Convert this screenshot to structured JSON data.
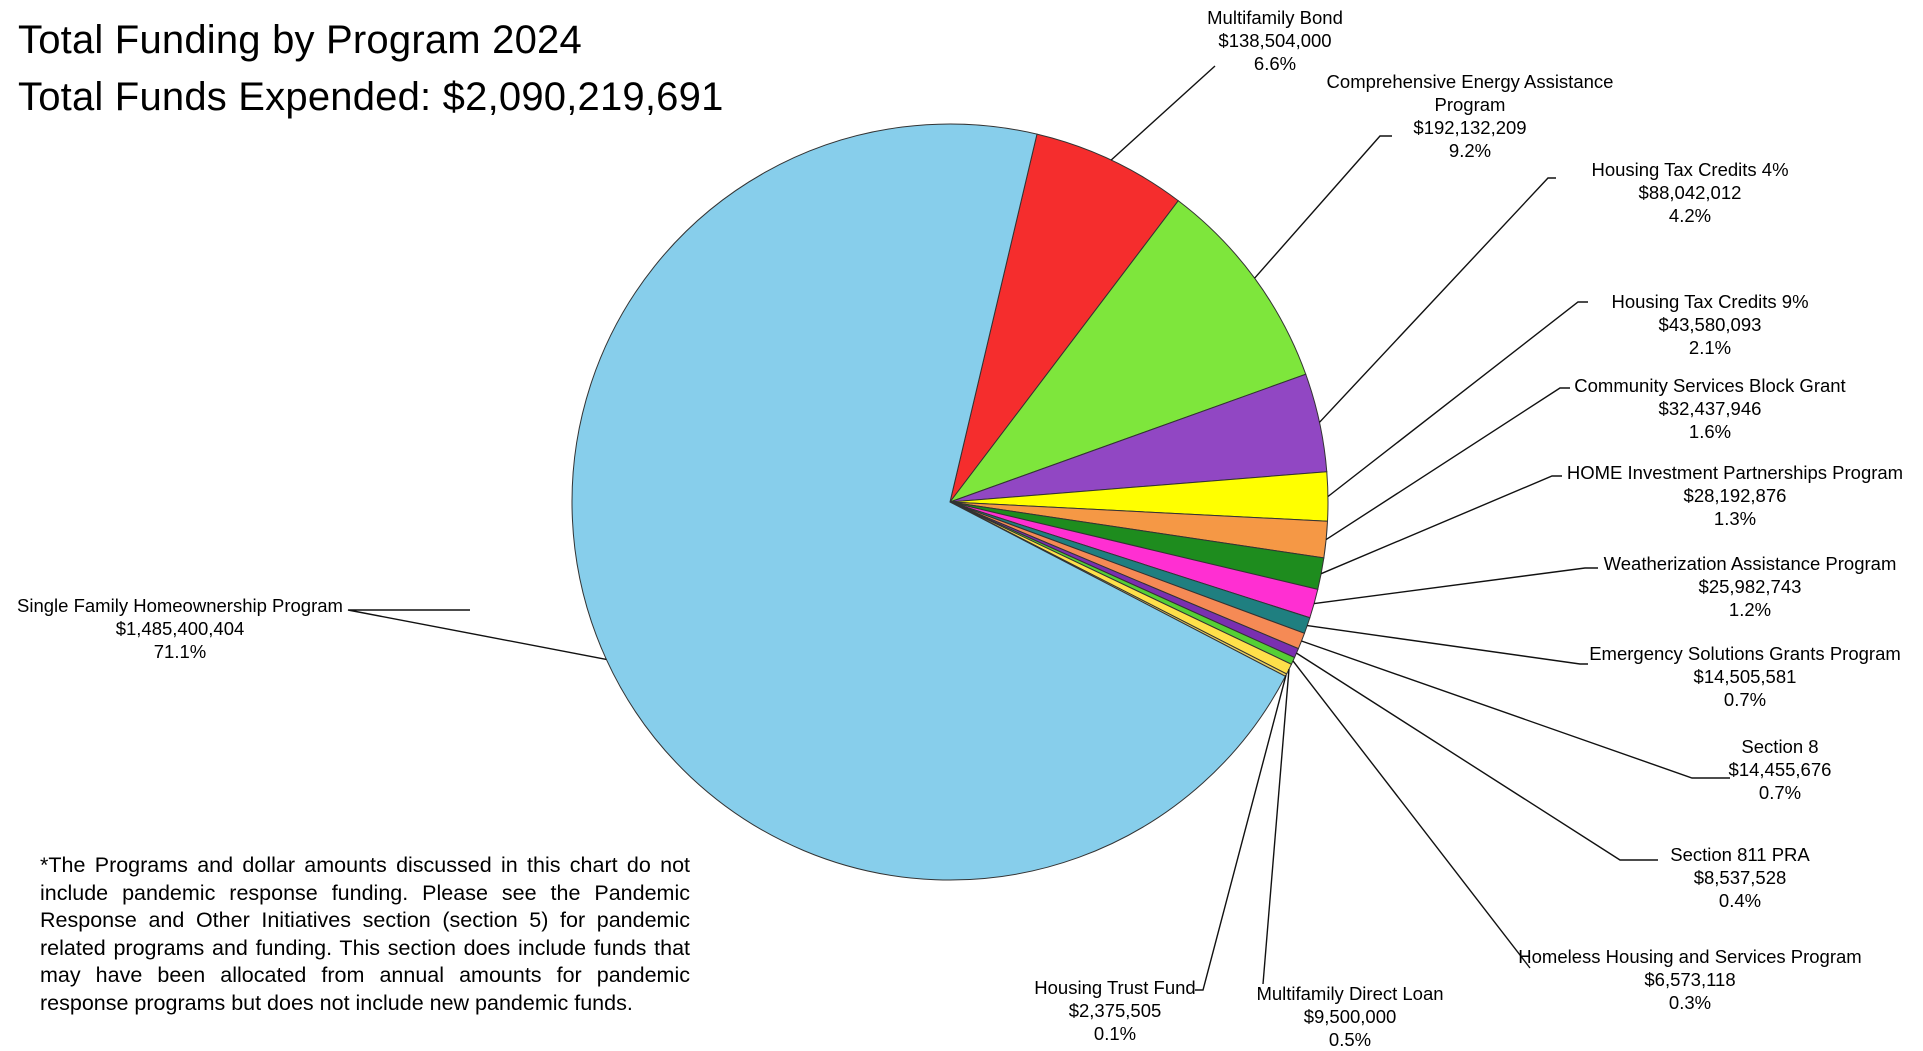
{
  "title": "Total Funding by Program 2024",
  "subtitle": "Total Funds Expended: $2,090,219,691",
  "footnote": "*The Programs and dollar amounts discussed in this chart do not include pandemic response funding. Please see the Pandemic Response and Other Initiatives section (section 5) for pandemic related programs and funding. This section does include funds that may have been allocated from annual amounts for pandemic response programs but does not include new pandemic funds.",
  "chart_data": {
    "type": "pie",
    "start": "top, clockwise",
    "slices": [
      {
        "label": "Multifamily Bond",
        "amount": "$138,504,000",
        "percent": "6.6%",
        "value": 138504000,
        "color": "#f52d2d"
      },
      {
        "label": "Comprehensive Energy Assistance Program",
        "label_line1": "Comprehensive Energy Assistance",
        "label_line2": "Program",
        "amount": "$192,132,209",
        "percent": "9.2%",
        "value": 192132209,
        "color": "#7ee63c"
      },
      {
        "label": "Housing Tax Credits 4%",
        "amount": "$88,042,012",
        "percent": "4.2%",
        "value": 88042012,
        "color": "#9147c3"
      },
      {
        "label": "Housing Tax Credits 9%",
        "amount": "$43,580,093",
        "percent": "2.1%",
        "value": 43580093,
        "color": "#ffff00"
      },
      {
        "label": "Community Services Block Grant",
        "amount": "$32,437,946",
        "percent": "1.6%",
        "value": 32437946,
        "color": "#f59845"
      },
      {
        "label": "HOME Investment Partnerships Program",
        "amount": "$28,192,876",
        "percent": "1.3%",
        "value": 28192876,
        "color": "#1e8c1e"
      },
      {
        "label": "Weatherization Assistance Program",
        "amount": "$25,982,743",
        "percent": "1.2%",
        "value": 25982743,
        "color": "#ff2fd2"
      },
      {
        "label": "Emergency Solutions Grants Program",
        "amount": "$14,505,581",
        "percent": "0.7%",
        "value": 14505581,
        "color": "#1f7f80"
      },
      {
        "label": "Section 8",
        "amount": "$14,455,676",
        "percent": "0.7%",
        "value": 14455676,
        "color": "#f58a55"
      },
      {
        "label": "Section 811 PRA",
        "amount": "$8,537,528",
        "percent": "0.4%",
        "value": 8537528,
        "color": "#7a2fb0"
      },
      {
        "label": "Homeless Housing and Services Program",
        "amount": "$6,573,118",
        "percent": "0.3%",
        "value": 6573118,
        "color": "#55d035"
      },
      {
        "label": "Multifamily Direct Loan",
        "amount": "$9,500,000",
        "percent": "0.5%",
        "value": 9500000,
        "color": "#ffe04a"
      },
      {
        "label": "Housing Trust Fund",
        "amount": "$2,375,505",
        "percent": "0.1%",
        "value": 2375505,
        "color": "#e8d060"
      },
      {
        "label": "Single Family Homeownership Program",
        "amount": "$1,485,400,404",
        "percent": "71.1%",
        "value": 1485400404,
        "color": "#87ceeb"
      }
    ]
  }
}
